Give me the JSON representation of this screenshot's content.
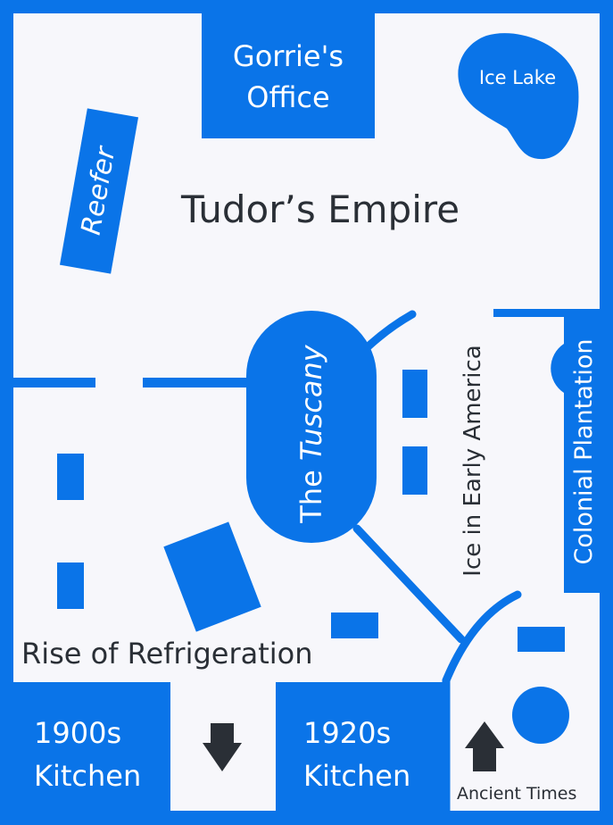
{
  "colors": {
    "primary": "#0a74e8",
    "floor": "#f7f7fb",
    "text_dark": "#2a2f36",
    "text_light": "#ffffff"
  },
  "rooms": {
    "tudors_empire": "Tudor’s Empire",
    "rise_of_refrigeration": "Rise of Refrigeration",
    "ice_in_early_america": "Ice in Early America",
    "colonial_plantation": "Colonial Plantation"
  },
  "exhibits": {
    "gorries_office_line1": "Gorrie's",
    "gorries_office_line2": "Office",
    "ice_lake": "Ice Lake",
    "reefer": "Reefer",
    "tuscany_prefix": "The ",
    "tuscany_name": "Tuscany",
    "kitchen_1900s_line1": "1900s",
    "kitchen_1900s_line2": "Kitchen",
    "kitchen_1920s_line1": "1920s",
    "kitchen_1920s_line2": "Kitchen"
  },
  "exits": {
    "ancient_times": "Ancient Times",
    "down_arrow_icon": "arrow-down-icon",
    "up_arrow_icon": "arrow-up-icon"
  }
}
